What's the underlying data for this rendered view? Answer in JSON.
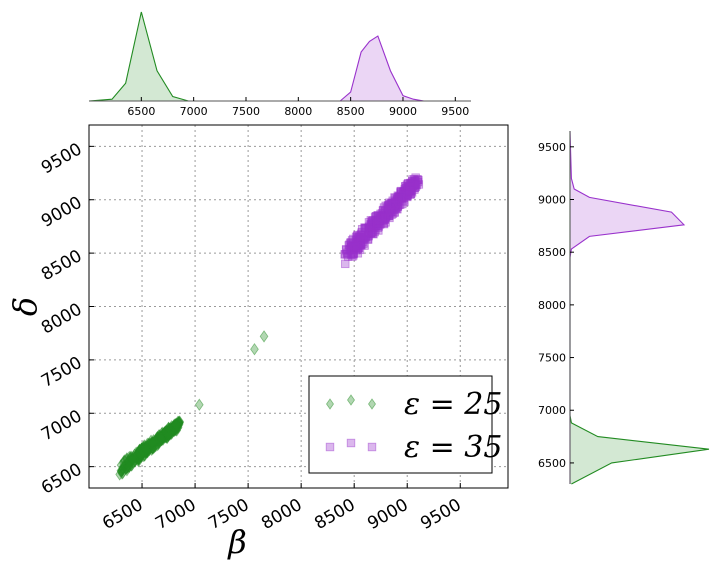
{
  "chart_data": [
    {
      "type": "scatter",
      "panel": "main",
      "xlabel": "β",
      "ylabel": "δ",
      "xlim": [
        6000,
        9950
      ],
      "ylim": [
        6300,
        9700
      ],
      "xticks": [
        "6500",
        "7000",
        "7500",
        "8000",
        "8500",
        "9000",
        "9500"
      ],
      "yticks": [
        "6500",
        "7000",
        "7500",
        "8000",
        "8500",
        "9000",
        "9500"
      ],
      "grid": true,
      "legend_position": "lower-right",
      "series": [
        {
          "name": "ε = 25",
          "marker": "diamond",
          "color": "#228b22",
          "cluster": {
            "x_min": 6300,
            "x_max": 6850,
            "y_min": 6480,
            "y_max": 6900
          },
          "outliers": [
            [
              7040,
              7080
            ],
            [
              7560,
              7600
            ],
            [
              7650,
              7720
            ]
          ]
        },
        {
          "name": "ε = 35",
          "marker": "square",
          "color": "#9932cc",
          "cluster": {
            "x_min": 8420,
            "x_max": 9100,
            "y_min": 8480,
            "y_max": 9180
          },
          "outliers": []
        }
      ]
    },
    {
      "type": "area",
      "panel": "top-marginal",
      "xlim": [
        6000,
        9650
      ],
      "xticks": [
        "6500",
        "7000",
        "7500",
        "8000",
        "8500",
        "9000",
        "9500"
      ],
      "series": [
        {
          "name": "ε = 25",
          "color": "#228b22",
          "points": [
            [
              6000,
              0
            ],
            [
              6220,
              0.02
            ],
            [
              6350,
              0.2
            ],
            [
              6500,
              1.0
            ],
            [
              6650,
              0.34
            ],
            [
              6800,
              0.05
            ],
            [
              6950,
              0
            ],
            [
              9650,
              0
            ]
          ]
        },
        {
          "name": "ε = 35",
          "color": "#9932cc",
          "points": [
            [
              6000,
              0
            ],
            [
              8400,
              0
            ],
            [
              8500,
              0.1
            ],
            [
              8600,
              0.55
            ],
            [
              8680,
              0.67
            ],
            [
              8760,
              0.73
            ],
            [
              8880,
              0.34
            ],
            [
              9000,
              0.06
            ],
            [
              9100,
              0.02
            ],
            [
              9200,
              0
            ],
            [
              9650,
              0
            ]
          ]
        }
      ]
    },
    {
      "type": "area",
      "panel": "right-marginal",
      "ylim": [
        6300,
        9650
      ],
      "yticks": [
        "6500",
        "7000",
        "7500",
        "8000",
        "8500",
        "9000",
        "9500"
      ],
      "series": [
        {
          "name": "ε = 25",
          "color": "#228b22",
          "points": [
            [
              6300,
              0.01
            ],
            [
              6500,
              0.3
            ],
            [
              6630,
              1.0
            ],
            [
              6750,
              0.2
            ],
            [
              6880,
              0.01
            ],
            [
              6950,
              0
            ],
            [
              9650,
              0
            ]
          ]
        },
        {
          "name": "ε = 35",
          "color": "#9932cc",
          "points": [
            [
              6300,
              0
            ],
            [
              8450,
              0
            ],
            [
              8530,
              0.01
            ],
            [
              8650,
              0.14
            ],
            [
              8760,
              0.82
            ],
            [
              8880,
              0.73
            ],
            [
              9020,
              0.14
            ],
            [
              9100,
              0.03
            ],
            [
              9200,
              0.01
            ],
            [
              9650,
              0
            ]
          ]
        }
      ]
    }
  ],
  "legend": {
    "entries": [
      {
        "label": "ε = 25",
        "color": "#228b22",
        "marker": "diamond"
      },
      {
        "label": "ε = 35",
        "color": "#9932cc",
        "marker": "square"
      }
    ]
  }
}
